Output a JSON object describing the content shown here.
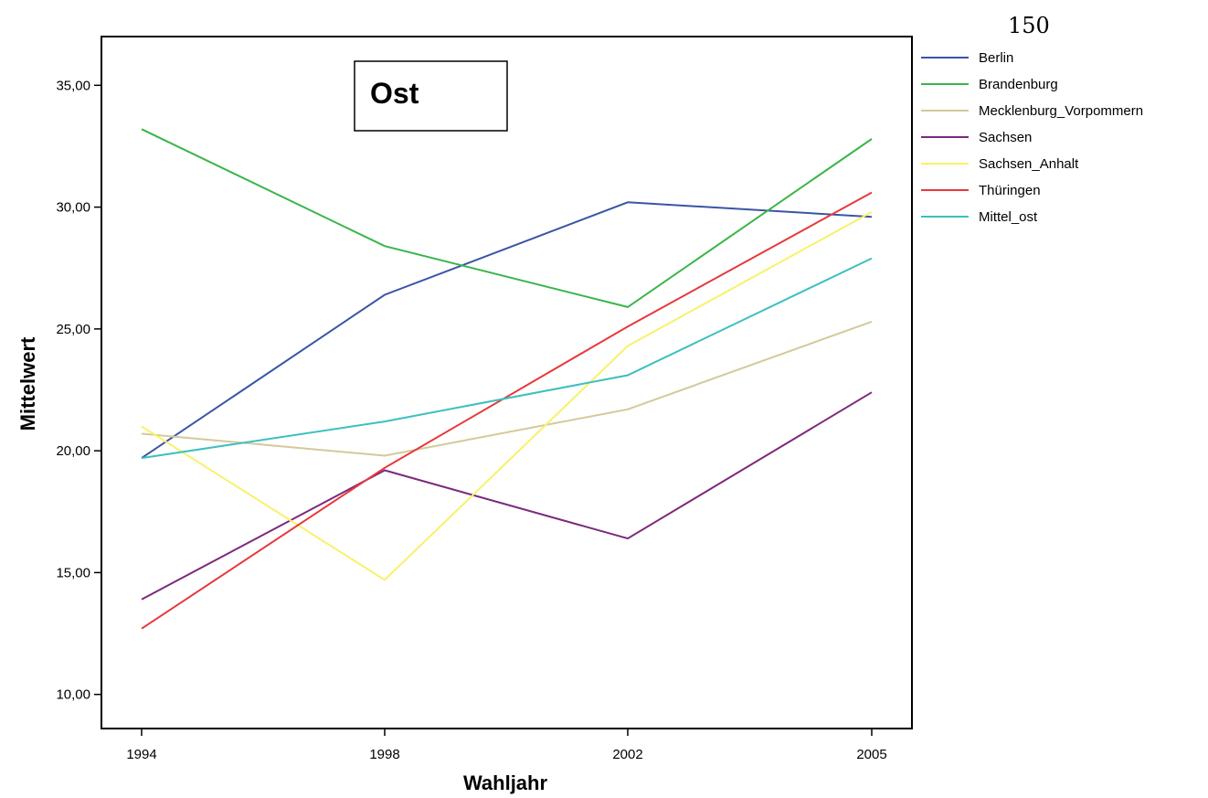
{
  "page_number": "150",
  "chart_data": {
    "type": "line",
    "annotation": "Ost",
    "xlabel": "Wahljahr",
    "ylabel": "Mittelwert",
    "categories": [
      "1994",
      "1998",
      "2002",
      "2005"
    ],
    "ylim": [
      8.6,
      37.0
    ],
    "yticks": [
      10,
      15,
      20,
      25,
      30,
      35
    ],
    "ytick_labels": [
      "10,00",
      "15,00",
      "20,00",
      "25,00",
      "30,00",
      "35,00"
    ],
    "grid": false,
    "legend_position": "outside-right-top",
    "series": [
      {
        "name": "Berlin",
        "color": "#3a55a4",
        "values": [
          19.7,
          26.4,
          30.2,
          29.6
        ]
      },
      {
        "name": "Brandenburg",
        "color": "#3ab54a",
        "values": [
          33.2,
          28.4,
          25.9,
          32.8
        ]
      },
      {
        "name": "Mecklenburg_Vorpommern",
        "color": "#d3c99a",
        "values": [
          20.7,
          19.8,
          21.7,
          25.3
        ]
      },
      {
        "name": "Sachsen",
        "color": "#7b2a7c",
        "values": [
          13.9,
          19.2,
          16.4,
          22.4
        ]
      },
      {
        "name": "Sachsen_Anhalt",
        "color": "#f7f26a",
        "values": [
          21.0,
          14.7,
          24.3,
          29.8
        ]
      },
      {
        "name": "Thüringen",
        "color": "#e8383b",
        "values": [
          12.7,
          19.3,
          25.1,
          30.6
        ]
      },
      {
        "name": "Mittel_ost",
        "color": "#3dbfbf",
        "values": [
          19.7,
          21.2,
          23.1,
          27.9
        ]
      }
    ]
  }
}
